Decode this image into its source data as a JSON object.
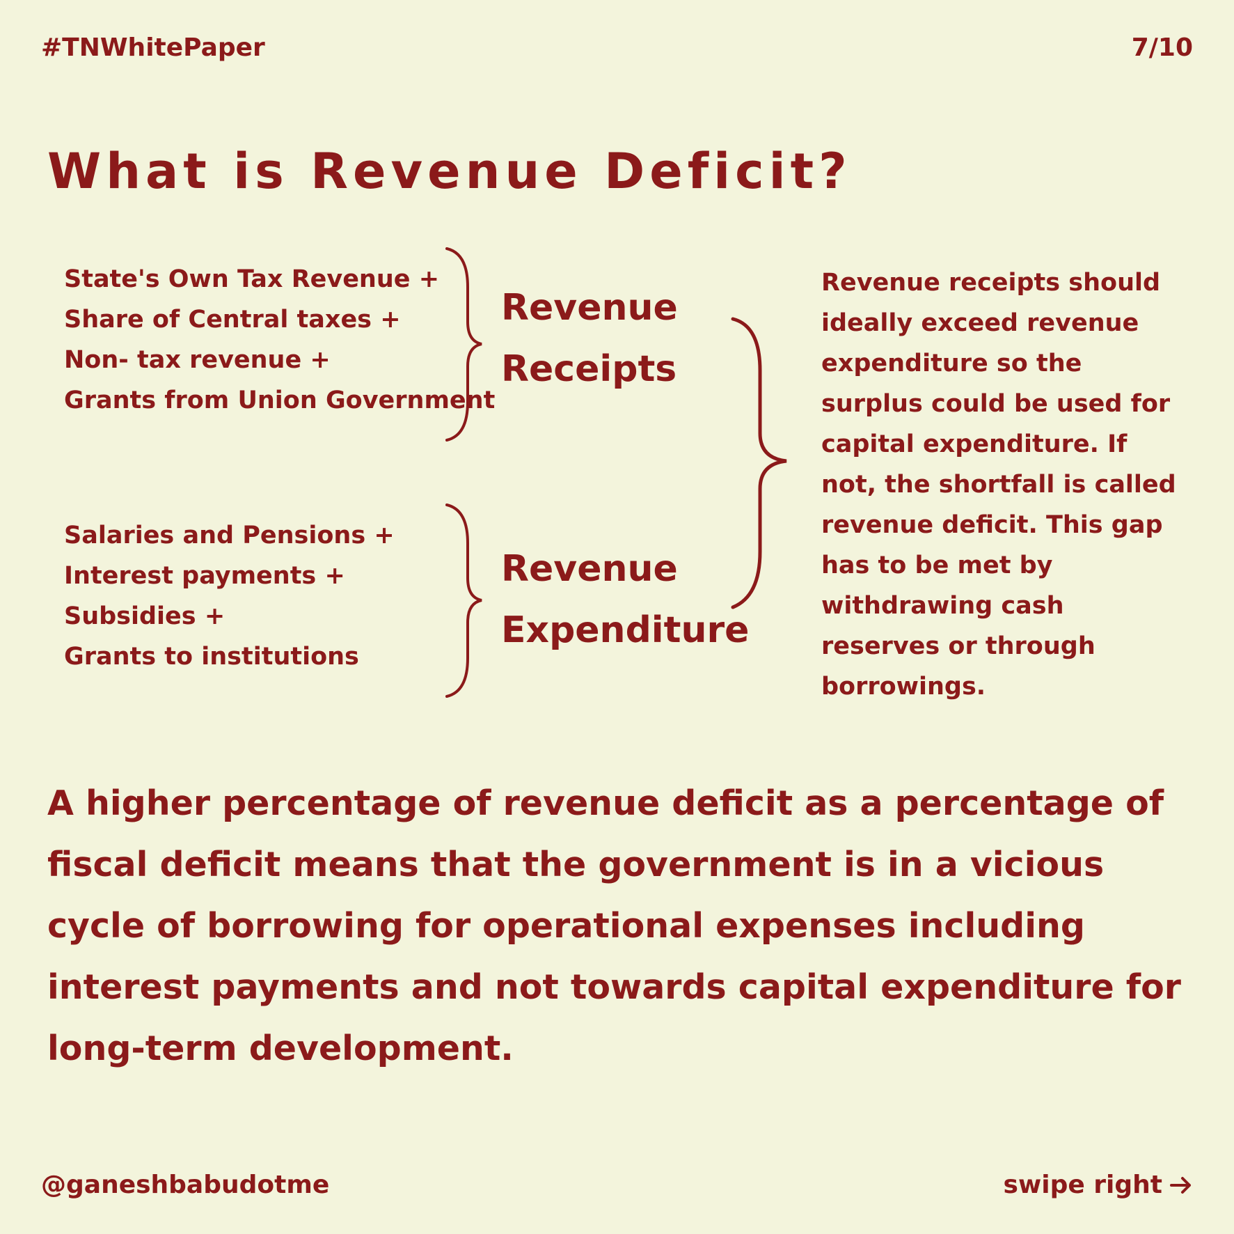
{
  "header": {
    "hashtag": "#TNWhitePaper",
    "page_indicator": "7/10"
  },
  "title": "What is Revenue Deficit?",
  "receipts": {
    "items": [
      "State's Own Tax Revenue +",
      "Share of Central taxes +",
      "Non- tax revenue +",
      "Grants from Union Government"
    ],
    "label_line1": "Revenue",
    "label_line2": "Receipts"
  },
  "expenditure": {
    "items": [
      "Salaries and Pensions +",
      "Interest payments +",
      "Subsidies +",
      "Grants to institutions"
    ],
    "label_line1": "Revenue",
    "label_line2": "Expenditure"
  },
  "explanation": "Revenue receipts should ideally exceed revenue expenditure so the surplus could be used for capital expenditure. If not, the shortfall is called revenue deficit. This gap has to be met by withdrawing cash reserves or through borrowings.",
  "summary": "A higher percentage of revenue deficit as a percentage of fiscal deficit means that the government is in a vicious cycle of borrowing for operational expenses including interest payments and not towards capital expenditure for long-term development.",
  "footer": {
    "handle": "@ganeshbabudotme",
    "swipe_label": "swipe right",
    "swipe_icon": "arrow-right-icon"
  },
  "colors": {
    "background": "#f3f4dc",
    "text": "#8b1a1a"
  }
}
